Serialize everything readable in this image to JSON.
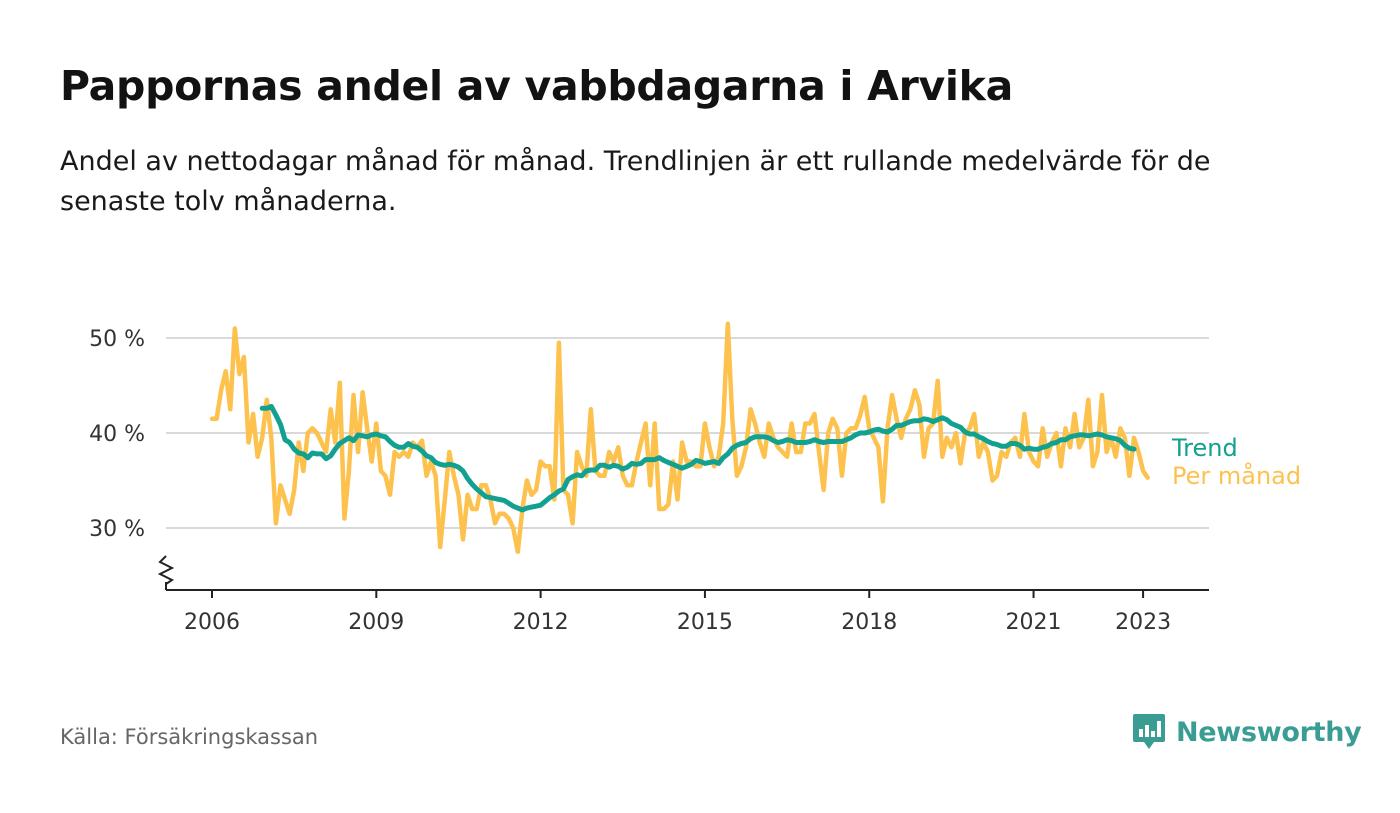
{
  "title": "Pappornas andel av vabbdagarna i Arvika",
  "subtitle": "Andel av nettodagar månad för månad. Trendlinjen är ett rullande medelvärde för de senaste tolv månaderna.",
  "source": "Källa: Försäkringskassan",
  "brand": "Newsworthy",
  "colors": {
    "trend": "#12a191",
    "monthly": "#fdc24e",
    "grid": "#d9d9d9",
    "brand": "#3a9d94"
  },
  "chart_data": {
    "type": "line",
    "ylim": [
      23,
      55
    ],
    "xlim": [
      2005.3,
      2024.2
    ],
    "yticks": [
      30,
      40,
      50
    ],
    "ytick_labels": [
      "30 %",
      "40 %",
      "50 %"
    ],
    "xticks": [
      2006,
      2009,
      2012,
      2015,
      2018,
      2021,
      2023
    ],
    "xtick_labels": [
      "2006",
      "2009",
      "2012",
      "2015",
      "2018",
      "2021",
      "2023"
    ],
    "axis_break": true,
    "grid": true,
    "legend_placement": "inline-right",
    "series": [
      {
        "name": "Per månad",
        "color": "#fdc24e",
        "start": "2006-01",
        "values": [
          41.5,
          41.5,
          44.5,
          46.5,
          42.5,
          51,
          46.2,
          48,
          39,
          42,
          37.5,
          39.5,
          43.5,
          39.5,
          30.5,
          34.5,
          33,
          31.5,
          34,
          39,
          36,
          40,
          40.5,
          40,
          39,
          38,
          42.5,
          39,
          45.3,
          31,
          36,
          44,
          38,
          44.3,
          40.5,
          37,
          41,
          36,
          35.5,
          33.5,
          38,
          37.5,
          38,
          37.5,
          39,
          38.5,
          39.2,
          35.5,
          37,
          35.5,
          28,
          33,
          38,
          35.5,
          33.5,
          28.8,
          33.5,
          32,
          32,
          34.5,
          34.5,
          33,
          30.5,
          31.5,
          31.5,
          31,
          30,
          27.5,
          32,
          35,
          33.5,
          34,
          37,
          36.5,
          36.5,
          33,
          49.5,
          34,
          33.5,
          30.5,
          38,
          36.5,
          35.5,
          42.5,
          36,
          35.5,
          35.5,
          38,
          37,
          38.5,
          35.5,
          34.5,
          34.5,
          37,
          39,
          41,
          34.5,
          41,
          32,
          32,
          32.5,
          37,
          33,
          39,
          37,
          37,
          36.5,
          36.5,
          41,
          38.5,
          36.5,
          37.5,
          41,
          51.5,
          41.5,
          35.5,
          36.5,
          38.5,
          42.5,
          41,
          39,
          37.5,
          41,
          39.5,
          38.5,
          38,
          37.5,
          41,
          38,
          38,
          41,
          41,
          42,
          38,
          34,
          40,
          41.5,
          40.5,
          35.5,
          40,
          40.5,
          40.5,
          41.8,
          43.8,
          40.5,
          39.5,
          38.5,
          32.8,
          40.5,
          44,
          41.5,
          39.5,
          41.5,
          42.5,
          44.5,
          43,
          37.5,
          40.5,
          41,
          45.5,
          37.5,
          39.5,
          38.5,
          40,
          36.8,
          40,
          40.5,
          42,
          37.5,
          39,
          38,
          35,
          35.5,
          38,
          37.5,
          39,
          39.5,
          37.5,
          42,
          38,
          37,
          36.5,
          40.5,
          37.5,
          39,
          40,
          36.5,
          40.5,
          38.5,
          42,
          38.5,
          39.5,
          43.5,
          36.5,
          38,
          44,
          38,
          39.5,
          37.5,
          40.5,
          39.5,
          35.5,
          39.5,
          38,
          36,
          35.3
        ]
      },
      {
        "name": "Trend",
        "color": "#12a191",
        "start": "2006-12",
        "values": [
          42.6,
          42.6,
          42.8,
          41.9,
          40.9,
          39.3,
          39.0,
          38.3,
          37.9,
          37.8,
          37.4,
          37.9,
          37.8,
          37.8,
          37.3,
          37.6,
          38.3,
          38.9,
          39.2,
          39.5,
          39.2,
          39.8,
          39.7,
          39.6,
          39.8,
          39.9,
          39.7,
          39.6,
          39.1,
          38.7,
          38.5,
          38.5,
          38.9,
          38.6,
          38.5,
          38.1,
          37.6,
          37.4,
          36.9,
          36.7,
          36.6,
          36.7,
          36.6,
          36.4,
          36.0,
          35.2,
          34.6,
          34.1,
          33.7,
          33.3,
          33.2,
          33.1,
          33.0,
          32.9,
          32.6,
          32.3,
          32.1,
          31.9,
          32.1,
          32.2,
          32.3,
          32.4,
          32.8,
          33.2,
          33.5,
          33.9,
          34.1,
          35.1,
          35.4,
          35.6,
          35.5,
          36.0,
          36.1,
          36.1,
          36.6,
          36.6,
          36.4,
          36.6,
          36.5,
          36.2,
          36.4,
          36.8,
          36.7,
          36.8,
          37.2,
          37.2,
          37.2,
          37.4,
          37.1,
          36.9,
          36.7,
          36.5,
          36.3,
          36.5,
          36.7,
          37.1,
          37.0,
          36.8,
          36.9,
          37.0,
          36.8,
          37.4,
          37.8,
          38.4,
          38.7,
          38.9,
          39.0,
          39.4,
          39.6,
          39.6,
          39.6,
          39.5,
          39.2,
          39.0,
          39.1,
          39.3,
          39.2,
          39.0,
          39.0,
          39.0,
          39.1,
          39.3,
          39.1,
          39.0,
          39.1,
          39.1,
          39.1,
          39.1,
          39.3,
          39.5,
          39.8,
          40.0,
          40.0,
          40.1,
          40.3,
          40.4,
          40.2,
          40.1,
          40.4,
          40.8,
          40.8,
          41.0,
          41.2,
          41.3,
          41.3,
          41.5,
          41.4,
          41.2,
          41.4,
          41.6,
          41.4,
          41.0,
          40.8,
          40.6,
          40.1,
          39.9,
          39.9,
          39.6,
          39.4,
          39.1,
          38.9,
          38.8,
          38.6,
          38.6,
          38.9,
          38.9,
          38.7,
          38.3,
          38.4,
          38.3,
          38.3,
          38.5,
          38.6,
          38.9,
          39.0,
          39.3,
          39.3,
          39.6,
          39.7,
          39.8,
          39.8,
          39.7,
          39.8,
          39.9,
          39.8,
          39.6,
          39.5,
          39.4,
          39.2,
          38.7,
          38.4,
          38.3
        ]
      }
    ]
  }
}
